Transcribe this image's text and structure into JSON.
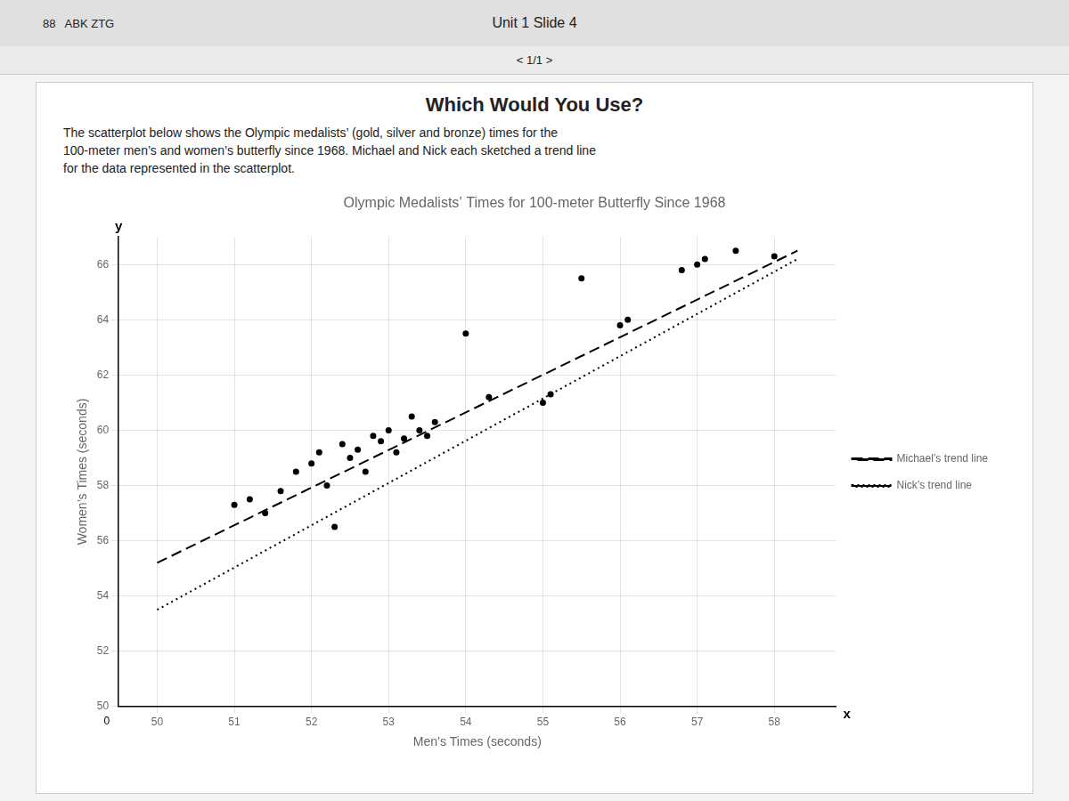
{
  "chart_data": {
    "type": "scatter",
    "title": "Olympic Medalists’ Times for 100-meter Butterfly Since 1968",
    "x_label": "Men’s Times (seconds)",
    "y_label": "Women’s Times (seconds)",
    "xlim": [
      49.5,
      58.8
    ],
    "ylim": [
      50,
      67
    ],
    "xticks": [
      50,
      51,
      52,
      53,
      54,
      55,
      56,
      57,
      58
    ],
    "yticks": [
      50,
      52,
      54,
      56,
      58,
      60,
      62,
      64,
      66
    ],
    "grid": true,
    "legend": "right",
    "annotations": [
      "88   ABK ZTG",
      "Unit 1 Slide 4",
      "< 1/1 >",
      "Which Would You Use?",
      "The scatterplot below shows the Olympic medalists’ (gold, silver and bronze) times for the",
      "100-meter men’s and women’s butterfly since 1968. Michael and Nick each sketched a trend line",
      "for the data represented in the scatterplot.",
      "y",
      "x",
      "0"
    ],
    "series": [
      {
        "type": "scatter",
        "color": "#000000",
        "marker": "circle",
        "x": [
          51.0,
          51.2,
          51.4,
          51.6,
          51.8,
          52.0,
          52.1,
          52.2,
          52.3,
          52.4,
          52.5,
          52.6,
          52.7,
          52.8,
          52.9,
          53.0,
          53.1,
          53.2,
          53.3,
          53.4,
          53.5,
          53.6,
          54.0,
          54.3,
          55.0,
          55.1,
          55.5,
          56.0,
          56.1,
          56.8,
          57.0,
          57.1,
          57.5,
          58.0
        ],
        "values": [
          57.3,
          57.5,
          57.0,
          57.8,
          58.5,
          58.8,
          59.2,
          58.0,
          56.5,
          59.5,
          59.0,
          59.3,
          58.5,
          59.8,
          59.6,
          60.0,
          59.2,
          59.7,
          60.5,
          60.0,
          59.8,
          60.3,
          63.5,
          61.2,
          61.0,
          61.3,
          65.5,
          63.8,
          64.0,
          65.8,
          66.0,
          66.2,
          66.5,
          66.3
        ]
      },
      {
        "name": "Michael’s trend line",
        "type": "line",
        "color": "#000000",
        "line_style": "dashed",
        "x": [
          50.0,
          58.3
        ],
        "values": [
          55.2,
          66.5
        ]
      },
      {
        "name": "Nick’s trend line",
        "type": "line",
        "color": "#000000",
        "line_style": "dotted",
        "x": [
          50.0,
          58.3
        ],
        "values": [
          53.5,
          66.2
        ]
      }
    ]
  }
}
